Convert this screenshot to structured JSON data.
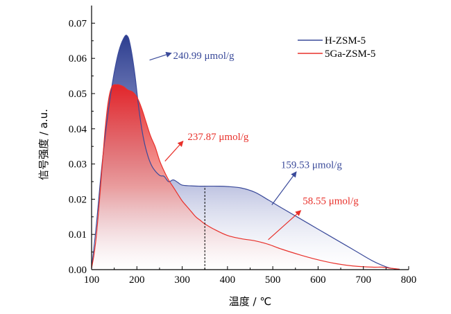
{
  "chart_data": {
    "type": "area",
    "xlabel": "温度 / ℃",
    "ylabel": "信号强度 / a.u.",
    "xlim": [
      100,
      800
    ],
    "ylim": [
      0,
      0.075
    ],
    "xticks": [
      "100",
      "200",
      "300",
      "400",
      "500",
      "600",
      "700",
      "800"
    ],
    "xtick_values": [
      100,
      200,
      300,
      400,
      500,
      600,
      700,
      800
    ],
    "yticks": [
      "0.00",
      "0.01",
      "0.02",
      "0.03",
      "0.04",
      "0.05",
      "0.06",
      "0.07"
    ],
    "ytick_values": [
      0,
      0.01,
      0.02,
      0.03,
      0.04,
      0.05,
      0.06,
      0.07
    ],
    "grid": false,
    "legend_position": "top-right",
    "divider_x": 350,
    "series": [
      {
        "name": "H-ZSM-5",
        "color": "#3a4a9a",
        "x": [
          100,
          110,
          120,
          130,
          140,
          150,
          160,
          170,
          178,
          185,
          195,
          205,
          215,
          225,
          235,
          250,
          260,
          270,
          280,
          290,
          300,
          320,
          340,
          350,
          380,
          400,
          430,
          460,
          490,
          520,
          560,
          600,
          640,
          680,
          720,
          750,
          770,
          780
        ],
        "y": [
          0.0005,
          0.012,
          0.026,
          0.038,
          0.048,
          0.056,
          0.062,
          0.0655,
          0.0665,
          0.064,
          0.056,
          0.045,
          0.037,
          0.032,
          0.029,
          0.0268,
          0.0265,
          0.025,
          0.0255,
          0.0248,
          0.024,
          0.0238,
          0.0237,
          0.0237,
          0.0237,
          0.0236,
          0.0232,
          0.022,
          0.0198,
          0.0175,
          0.0145,
          0.0115,
          0.0085,
          0.0055,
          0.0025,
          0.0008,
          0.0002,
          0.0001
        ]
      },
      {
        "name": "5Ga-ZSM-5",
        "color": "#e8302a",
        "x": [
          100,
          105,
          110,
          115,
          120,
          125,
          130,
          135,
          140,
          145,
          150,
          155,
          160,
          170,
          180,
          190,
          200,
          210,
          220,
          230,
          240,
          250,
          260,
          270,
          280,
          290,
          300,
          310,
          320,
          330,
          340,
          350,
          370,
          400,
          430,
          460,
          490,
          520,
          560,
          600,
          640,
          680,
          720,
          740,
          760,
          780
        ],
        "y": [
          0.0005,
          0.004,
          0.009,
          0.016,
          0.024,
          0.032,
          0.04,
          0.046,
          0.05,
          0.052,
          0.0525,
          0.0525,
          0.0525,
          0.052,
          0.051,
          0.0505,
          0.049,
          0.046,
          0.042,
          0.038,
          0.035,
          0.031,
          0.028,
          0.0255,
          0.0235,
          0.0215,
          0.0195,
          0.018,
          0.0165,
          0.015,
          0.014,
          0.013,
          0.0115,
          0.0097,
          0.0088,
          0.0082,
          0.0072,
          0.0058,
          0.0042,
          0.0028,
          0.0017,
          0.001,
          0.0007,
          0.0007,
          0.0004,
          0.0001
        ]
      }
    ],
    "annotations": [
      {
        "text": "240.99 μmol/g",
        "color": "#3a4a9a",
        "from": [
          228,
          0.0595
        ],
        "to": [
          276,
          0.0615
        ],
        "text_at": [
          280,
          0.0598
        ]
      },
      {
        "text": "237.87 μmol/g",
        "color": "#e8302a",
        "from": [
          262,
          0.0308
        ],
        "to": [
          302,
          0.0365
        ],
        "text_at": [
          312,
          0.0368
        ]
      },
      {
        "text": "159.53 μmol/g",
        "color": "#3a4a9a",
        "from": [
          498,
          0.0184
        ],
        "to": [
          552,
          0.0278
        ],
        "text_at": [
          518,
          0.0288
        ]
      },
      {
        "text": "58.55 μmol/g",
        "color": "#e8302a",
        "from": [
          490,
          0.0085
        ],
        "to": [
          562,
          0.0168
        ],
        "text_at": [
          566,
          0.0186
        ]
      }
    ]
  }
}
